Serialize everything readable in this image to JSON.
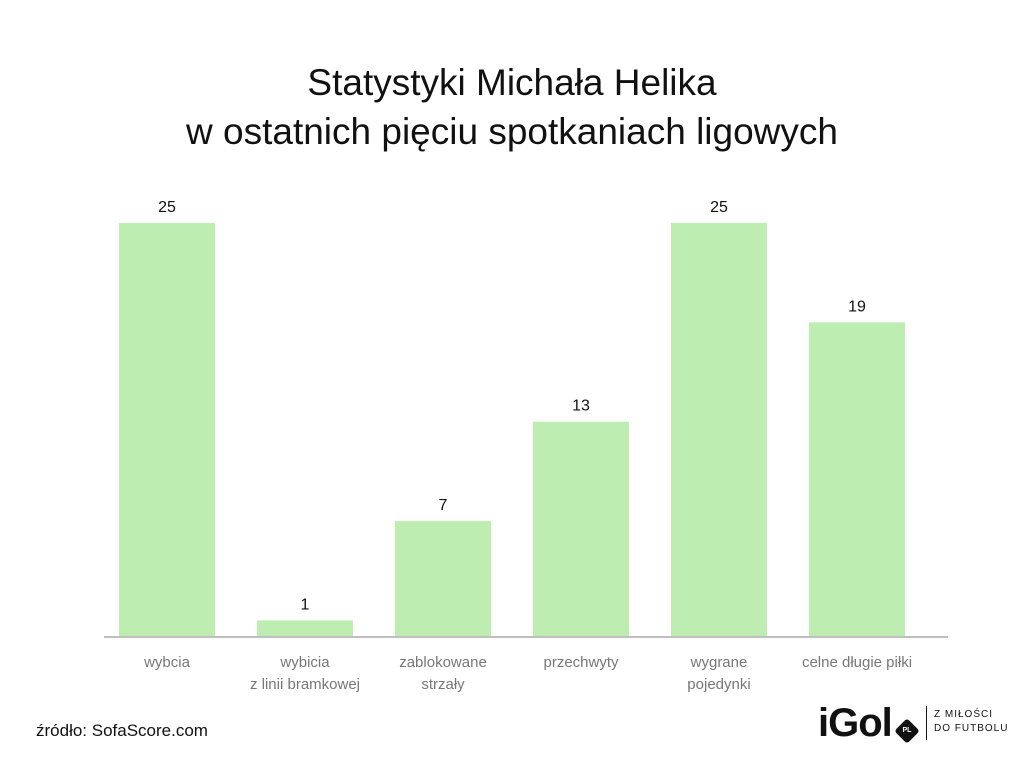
{
  "chart_data": {
    "type": "bar",
    "title": [
      "Statystyki Michała Helika",
      "w ostatnich pięciu spotkaniach ligowych"
    ],
    "categories": [
      [
        "wybcia"
      ],
      [
        "wybicia",
        "z linii bramkowej"
      ],
      [
        "zablokowane",
        "strzały"
      ],
      [
        "przechwyty"
      ],
      [
        "wygrane",
        "pojedynki"
      ],
      [
        "celne długie piłki"
      ]
    ],
    "values": [
      25,
      1,
      7,
      13,
      25,
      19
    ],
    "ylim": [
      0,
      25
    ],
    "grid": false,
    "legend": "none",
    "colors": {
      "bar": "#bdedb0",
      "axis": "#bfbfbf",
      "label": "#777777",
      "value": "#111111"
    }
  },
  "source": "źródło: SofaScore.com",
  "logo": {
    "text": "iGol",
    "badge": "PL",
    "tagline": [
      "Z MIŁOŚCI",
      "DO FUTBOLU"
    ]
  }
}
